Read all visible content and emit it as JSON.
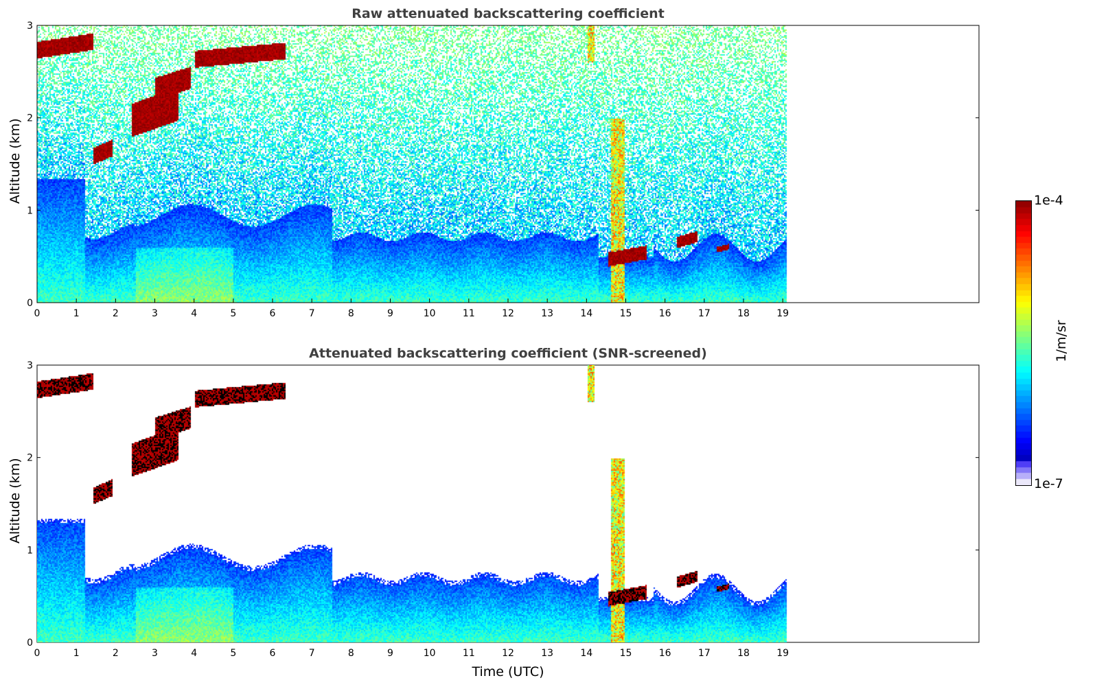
{
  "figure": {
    "xlabel": "Time (UTC)",
    "colorbar": {
      "label": "1/m/sr",
      "max_label": "1e-4",
      "min_label": "1e-7",
      "scale": "log",
      "range": [
        1e-07,
        0.0001
      ],
      "colormap": "jet with light-lavender low end"
    }
  },
  "chart_data": [
    {
      "type": "heatmap",
      "title": "Raw attenuated backscattering coefficient",
      "xlabel": "",
      "ylabel": "Altitude (km)",
      "xlim": [
        0,
        24
      ],
      "ylim": [
        0,
        3
      ],
      "xticks": [
        "0",
        "1",
        "2",
        "3",
        "4",
        "5",
        "6",
        "7",
        "8",
        "9",
        "10",
        "11",
        "12",
        "13",
        "14",
        "15",
        "16",
        "17",
        "18",
        "19"
      ],
      "yticks": [
        "0",
        "1",
        "2",
        "3"
      ],
      "data_end_time": 19.1,
      "screened": false
    },
    {
      "type": "heatmap",
      "title": "Attenuated backscattering coefficient (SNR-screened)",
      "xlabel": "Time (UTC)",
      "ylabel": "Altitude (km)",
      "xlim": [
        0,
        24
      ],
      "ylim": [
        0,
        3
      ],
      "xticks": [
        "0",
        "1",
        "2",
        "3",
        "4",
        "5",
        "6",
        "7",
        "8",
        "9",
        "10",
        "11",
        "12",
        "13",
        "14",
        "15",
        "16",
        "17",
        "18",
        "19"
      ],
      "yticks": [
        "0",
        "1",
        "2",
        "3"
      ],
      "data_end_time": 19.1,
      "screened": true
    }
  ]
}
